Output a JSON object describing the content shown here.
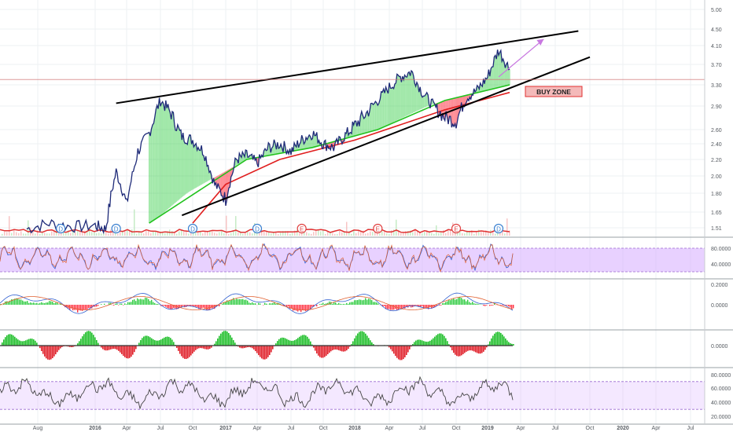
{
  "chart_data": {
    "type": "line",
    "x_axis": {
      "ticks": [
        "Aug",
        "2016",
        "Apr",
        "Jul",
        "Oct",
        "2017",
        "Apr",
        "Jul",
        "Oct",
        "2018",
        "Apr",
        "Jul",
        "Oct",
        "2019",
        "Apr",
        "Jul",
        "Oct",
        "2020",
        "Apr",
        "Jul"
      ]
    },
    "price_axis": {
      "ticks": [
        5.0,
        4.5,
        4.1,
        3.7,
        3.3,
        2.9,
        2.6,
        2.4,
        2.2,
        2.0,
        1.8,
        1.65,
        1.51
      ],
      "tick_labels": [
        "5.00",
        "4.50",
        "4.10",
        "3.70",
        "3.30",
        "2.90",
        "2.60",
        "2.40",
        "2.20",
        "2.00",
        "1.80",
        "1.65",
        "1.51"
      ],
      "current_level": 3.4,
      "scale": "log"
    },
    "price_series": [
      [
        "2015-07",
        1.5
      ],
      [
        "2015-09",
        1.55
      ],
      [
        "2015-11",
        1.52
      ],
      [
        "2016-01",
        1.53
      ],
      [
        "2016-02",
        1.5
      ],
      [
        "2016-03",
        2.05
      ],
      [
        "2016-04",
        1.7
      ],
      [
        "2016-05",
        2.3
      ],
      [
        "2016-06",
        2.55
      ],
      [
        "2016-07",
        3.0
      ],
      [
        "2016-08",
        2.8
      ],
      [
        "2016-09",
        2.5
      ],
      [
        "2016-10",
        2.45
      ],
      [
        "2016-11",
        2.3
      ],
      [
        "2016-12",
        1.9
      ],
      [
        "2017-01",
        1.75
      ],
      [
        "2017-02",
        2.2
      ],
      [
        "2017-03",
        2.25
      ],
      [
        "2017-04",
        2.15
      ],
      [
        "2017-05",
        2.35
      ],
      [
        "2017-06",
        2.4
      ],
      [
        "2017-07",
        2.3
      ],
      [
        "2017-08",
        2.45
      ],
      [
        "2017-09",
        2.55
      ],
      [
        "2017-10",
        2.4
      ],
      [
        "2017-11",
        2.35
      ],
      [
        "2017-12",
        2.5
      ],
      [
        "2018-01",
        2.65
      ],
      [
        "2018-02",
        2.8
      ],
      [
        "2018-03",
        3.0
      ],
      [
        "2018-04",
        3.25
      ],
      [
        "2018-05",
        3.45
      ],
      [
        "2018-06",
        3.55
      ],
      [
        "2018-07",
        3.15
      ],
      [
        "2018-08",
        2.9
      ],
      [
        "2018-09",
        2.75
      ],
      [
        "2018-10",
        2.7
      ],
      [
        "2018-11",
        3.05
      ],
      [
        "2018-12",
        3.2
      ],
      [
        "2019-01",
        3.45
      ],
      [
        "2019-02",
        4.0
      ],
      [
        "2019-03",
        3.6
      ]
    ],
    "ma_green": [
      [
        "2016-06",
        1.55
      ],
      [
        "2017-03",
        2.2
      ],
      [
        "2017-09",
        2.35
      ],
      [
        "2018-03",
        2.6
      ],
      [
        "2018-09",
        3.0
      ],
      [
        "2019-03",
        3.3
      ]
    ],
    "ma_red": [
      [
        "2016-10",
        1.55
      ],
      [
        "2017-01",
        1.9
      ],
      [
        "2017-06",
        2.2
      ],
      [
        "2018-01",
        2.45
      ],
      [
        "2018-09",
        2.85
      ],
      [
        "2019-03",
        3.15
      ]
    ],
    "trendlines": [
      {
        "from": [
          "2016-03",
          2.95
        ],
        "to": [
          "2019-09",
          4.45
        ]
      },
      {
        "from": [
          "2016-09",
          1.62
        ],
        "to": [
          "2019-10",
          3.85
        ]
      }
    ],
    "projection_arrow": {
      "from": [
        "2019-02",
        3.45
      ],
      "to": [
        "2019-06",
        4.25
      ]
    },
    "annotations": [
      {
        "text": "BUY ZONE"
      }
    ],
    "event_markers": [
      {
        "letter": "D",
        "x": "2015-10"
      },
      {
        "letter": "D",
        "x": "2016-03"
      },
      {
        "letter": "D",
        "x": "2016-10"
      },
      {
        "letter": "D",
        "x": "2017-04"
      },
      {
        "letter": "E",
        "x": "2017-08"
      },
      {
        "letter": "E",
        "x": "2018-03"
      },
      {
        "letter": "E",
        "x": "2018-10"
      },
      {
        "letter": "D",
        "x": "2019-02"
      }
    ],
    "oscillator_panels": [
      {
        "id": "stoch",
        "ticks": [
          80,
          40
        ],
        "tick_labels": [
          "80.0000",
          "40.0000"
        ],
        "band": [
          20,
          80
        ]
      },
      {
        "id": "macd",
        "ticks": [
          0.2,
          0
        ],
        "tick_labels": [
          "0.2000",
          "0.0000"
        ]
      },
      {
        "id": "momentum",
        "ticks": [
          0
        ],
        "tick_labels": [
          "0.0000"
        ]
      },
      {
        "id": "rsi",
        "ticks": [
          80,
          60,
          40,
          20
        ],
        "tick_labels": [
          "80.0000",
          "60.0000",
          "40.0000",
          "20.0000"
        ],
        "band": [
          30,
          70
        ]
      }
    ],
    "colors": {
      "price": "#1e2a78",
      "ma_green": "#22c21e",
      "ma_red": "#e01e1e",
      "cloud_up": "#2ecc40",
      "cloud_down": "#ff3040",
      "band": "#d9b3ff",
      "trend": "#000000",
      "arrow": "#c878e0",
      "buy_zone_bg": "#f4b9b9",
      "buy_zone_border": "#e03030",
      "level_line": "#d07070"
    }
  }
}
